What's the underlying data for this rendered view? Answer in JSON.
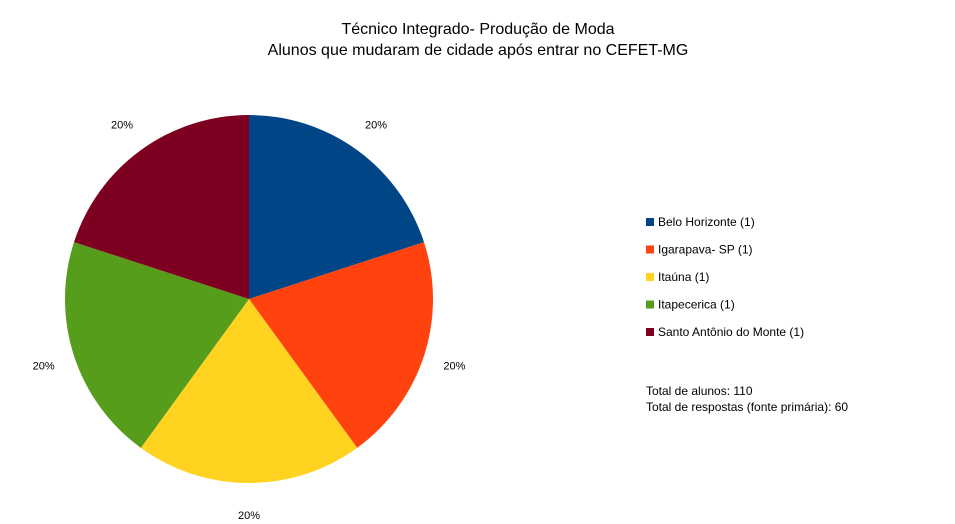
{
  "chart_data": {
    "type": "pie",
    "title": "Técnico Integrado- Produção de Moda",
    "subtitle": "Alunos que mudaram de cidade após entrar no CEFET-MG",
    "slices": [
      {
        "label": "Belo Horizonte (1)",
        "value": 1,
        "percent_label": "20%",
        "color": "#004586"
      },
      {
        "label": "Igarapava- SP (1)",
        "value": 1,
        "percent_label": "20%",
        "color": "#ff420e"
      },
      {
        "label": "Itaúna (1)",
        "value": 1,
        "percent_label": "20%",
        "color": "#ffd320"
      },
      {
        "label": "Itapecerica (1)",
        "value": 1,
        "percent_label": "20%",
        "color": "#579d1c"
      },
      {
        "label": "Santo Antônio do Monte (1)",
        "value": 1,
        "percent_label": "20%",
        "color": "#7e0021"
      }
    ],
    "legend_position": "right"
  },
  "notes": {
    "total_students": "Total de alunos: 110",
    "total_responses": "Total de respostas (fonte primária): 60"
  }
}
